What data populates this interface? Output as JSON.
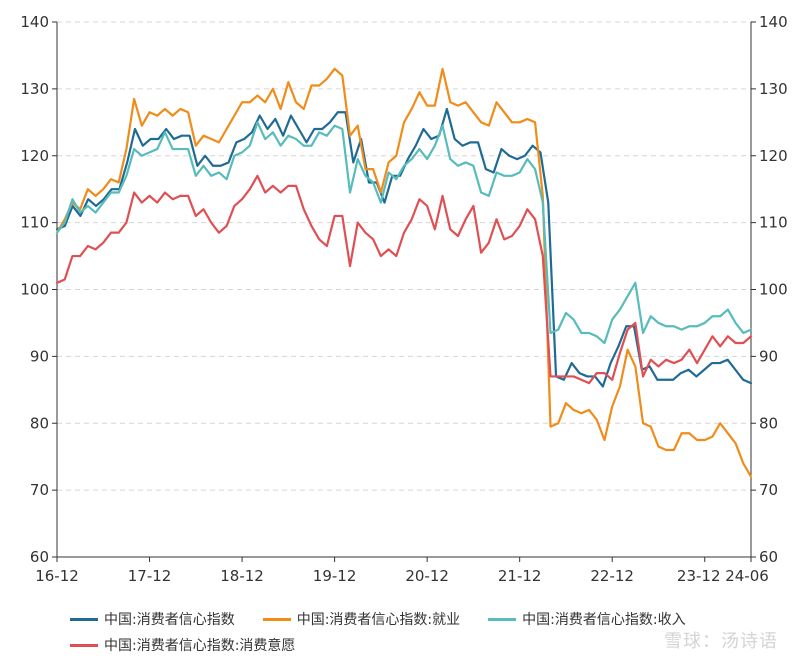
{
  "chart_data": {
    "type": "line",
    "title": "",
    "xlabel": "",
    "ylabel": "",
    "x_tick_labels": [
      "16-12",
      "17-12",
      "18-12",
      "19-12",
      "20-12",
      "21-12",
      "22-12",
      "23-12",
      "24-06"
    ],
    "x_tick_months": [
      "2016-12",
      "2017-12",
      "2018-12",
      "2019-12",
      "2020-12",
      "2021-12",
      "2022-12",
      "2023-12",
      "2024-06"
    ],
    "x_start": "2016-12",
    "x_end": "2024-06",
    "ylim": [
      60,
      140
    ],
    "yticks": [
      60,
      70,
      80,
      90,
      100,
      110,
      120,
      130,
      140
    ],
    "y_right_axis": true,
    "grid": "horizontal-dashed",
    "legend_position": "bottom",
    "series": [
      {
        "name": "中国:消费者信心指数",
        "color": "#1f6b94",
        "values": [
          109,
          109.5,
          112.5,
          111,
          113.5,
          112.5,
          113.5,
          115,
          115,
          119,
          124,
          121.5,
          122.5,
          122.5,
          124,
          122.5,
          123,
          123,
          118.5,
          120,
          118.5,
          118.5,
          119,
          122,
          122.5,
          123.5,
          126,
          124,
          125.5,
          123,
          126,
          124,
          122,
          124,
          124,
          125,
          126.5,
          126.5,
          119,
          122.5,
          116,
          116,
          113,
          117,
          117,
          119.5,
          121.5,
          124,
          122.5,
          123,
          127,
          122.5,
          121.5,
          122,
          122,
          118,
          117.5,
          121,
          120,
          119.5,
          120,
          121.5,
          120.5,
          113,
          87,
          86.5,
          89,
          87.5,
          87,
          87,
          85.5,
          89,
          91.5,
          94.5,
          94.5,
          88,
          88.5,
          86.5,
          86.5,
          86.5,
          87.5,
          88,
          87,
          88,
          89,
          89,
          89.5,
          88,
          86.5,
          86
        ]
      },
      {
        "name": "中国:消费者信心指数:就业",
        "color": "#f08c1a",
        "values": [
          108.5,
          110.5,
          113,
          112,
          115,
          114,
          115,
          116.5,
          116,
          121,
          128.5,
          124.5,
          126.5,
          126,
          127,
          126,
          127,
          126.5,
          121.5,
          123,
          122.5,
          122,
          124,
          126,
          128,
          128,
          129,
          128,
          130,
          127,
          131,
          128,
          127,
          130.5,
          130.5,
          131.5,
          133,
          132,
          123,
          124.5,
          118,
          118,
          114.5,
          119,
          120,
          125,
          127,
          129.5,
          127.5,
          127.5,
          133,
          128,
          127.5,
          128,
          126.5,
          125,
          124.5,
          128,
          126.5,
          125,
          125,
          125.5,
          125,
          114,
          79.5,
          80,
          83,
          82,
          81.5,
          82,
          80.5,
          77.5,
          82.5,
          85.5,
          91,
          88.5,
          80,
          79.5,
          76.5,
          76,
          76,
          78.5,
          78.5,
          77.5,
          77.5,
          78,
          80,
          78.5,
          77,
          74,
          72
        ]
      },
      {
        "name": "中国:消费者信心指数:收入",
        "color": "#57bcbb",
        "values": [
          108.5,
          110,
          113.5,
          111.5,
          112.5,
          111.5,
          113,
          114.5,
          114.5,
          117,
          121,
          120,
          120.5,
          121,
          123.5,
          121,
          121,
          121,
          117,
          118.5,
          117,
          117.5,
          116.5,
          120,
          120.5,
          121.5,
          125,
          122.5,
          123.5,
          121.5,
          123,
          122.5,
          121.5,
          121.5,
          123.5,
          123,
          124.5,
          124,
          114.5,
          119.5,
          117,
          116,
          113,
          117.5,
          116.5,
          118.5,
          119.5,
          121,
          119.5,
          121.5,
          124.5,
          119.5,
          118.5,
          119,
          118.5,
          114.5,
          114,
          117.5,
          117,
          117,
          117.5,
          119.5,
          118,
          113,
          93.5,
          94,
          96.5,
          95.5,
          93.5,
          93.5,
          93,
          92,
          95.5,
          97,
          99,
          101,
          93.5,
          96,
          95,
          94.5,
          94.5,
          94,
          94.5,
          94.5,
          95,
          96,
          96,
          97,
          95,
          93.5,
          94
        ]
      },
      {
        "name": "中国:消费者信心指数:消费意愿",
        "color": "#de5054",
        "values": [
          101,
          101.5,
          105,
          105,
          106.5,
          106,
          107,
          108.5,
          108.5,
          110,
          114.5,
          113,
          114,
          113,
          114.5,
          113.5,
          114,
          114,
          111,
          112,
          110,
          108.5,
          109.5,
          112.5,
          113.5,
          115,
          117,
          114.5,
          115.5,
          114.5,
          115.5,
          115.5,
          112,
          109.5,
          107.5,
          106.5,
          111,
          111,
          103.5,
          110,
          108.5,
          107.5,
          105,
          106,
          105,
          108.5,
          110.5,
          113.5,
          112.5,
          109,
          114,
          109,
          108,
          110.5,
          112.5,
          105.5,
          107,
          110.5,
          107.5,
          108,
          109.5,
          112,
          110.5,
          105,
          87,
          87,
          87,
          87,
          86.5,
          86,
          87.5,
          87.5,
          86.5,
          90.5,
          94,
          95,
          87,
          89.5,
          88.5,
          89.5,
          89,
          89.5,
          91,
          89,
          91,
          93,
          91.5,
          93,
          92,
          92,
          93
        ]
      }
    ]
  },
  "watermark": "雪球：汤诗语"
}
